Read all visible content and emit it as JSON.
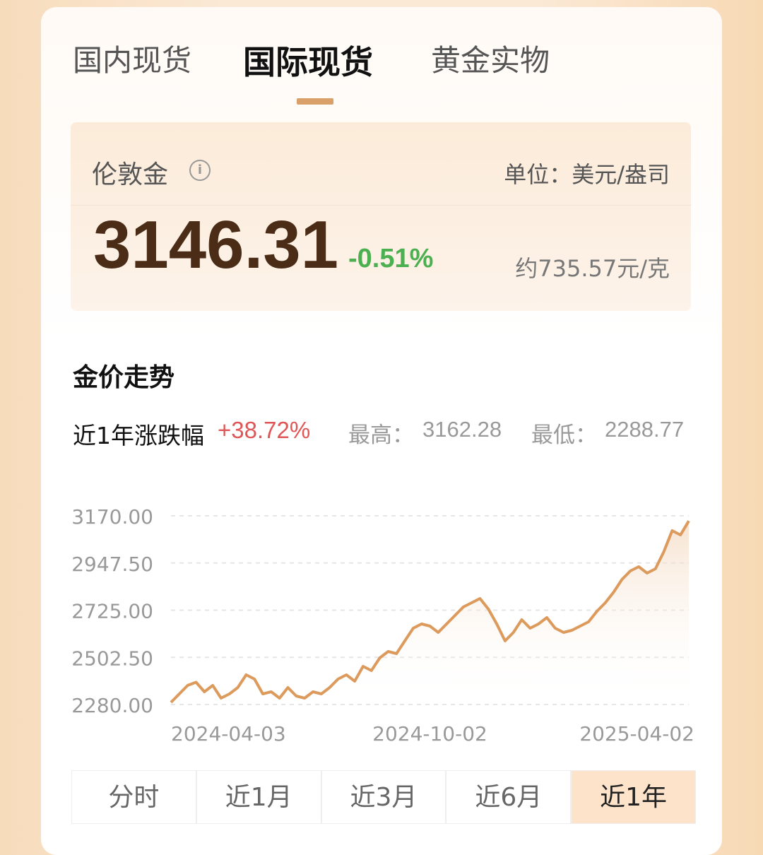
{
  "tabs": [
    "国内现货",
    "国际现货",
    "黄金实物"
  ],
  "active_tab": 1,
  "quote": {
    "name": "伦敦金",
    "unit": "单位：美元/盎司",
    "price": "3146.31",
    "change": "-0.51%",
    "approx": "约735.57元/克"
  },
  "section_title": "金价走势",
  "stats": {
    "period_label": "近1年涨跌幅",
    "period_change": "+38.72%",
    "high_label": "最高：",
    "high": "3162.28",
    "low_label": "最低：",
    "low": "2288.77"
  },
  "chart_data": {
    "type": "line",
    "categories": [
      "2024-04-03",
      null,
      null,
      null,
      null,
      null,
      null,
      null,
      null,
      null,
      null,
      null,
      null,
      null,
      null,
      null,
      null,
      null,
      null,
      null,
      null,
      null,
      null,
      null,
      null,
      null,
      null,
      null,
      null,
      null,
      null,
      "2024-10-02",
      null,
      null,
      null,
      null,
      null,
      null,
      null,
      null,
      null,
      null,
      null,
      null,
      null,
      null,
      null,
      null,
      null,
      null,
      null,
      null,
      null,
      null,
      null,
      null,
      null,
      null,
      null,
      null,
      null,
      null,
      "2025-04-02"
    ],
    "series": [
      {
        "color": "#dc9a5c",
        "values": [
          2290,
          2330,
          2370,
          2385,
          2340,
          2370,
          2310,
          2330,
          2360,
          2420,
          2400,
          2330,
          2340,
          2310,
          2360,
          2320,
          2310,
          2340,
          2330,
          2360,
          2400,
          2420,
          2390,
          2460,
          2440,
          2500,
          2530,
          2520,
          2580,
          2640,
          2660,
          2650,
          2620,
          2660,
          2700,
          2740,
          2760,
          2780,
          2730,
          2660,
          2580,
          2620,
          2680,
          2640,
          2660,
          2690,
          2640,
          2620,
          2630,
          2650,
          2670,
          2720,
          2760,
          2810,
          2870,
          2910,
          2930,
          2900,
          2920,
          3000,
          3100,
          3080,
          3146
        ]
      }
    ],
    "ylim": [
      2280,
      3170
    ],
    "yticks": [
      {
        "value": 2280,
        "label": "2280.00"
      },
      {
        "value": 2502.5,
        "label": "2502.50"
      },
      {
        "value": 2725,
        "label": "2725.00"
      },
      {
        "value": 2947.5,
        "label": "2947.50"
      },
      {
        "value": 3170,
        "label": "3170.00"
      }
    ],
    "grid": true
  },
  "ranges": [
    "分时",
    "近1月",
    "近3月",
    "近6月",
    "近1年"
  ],
  "active_range": 4
}
